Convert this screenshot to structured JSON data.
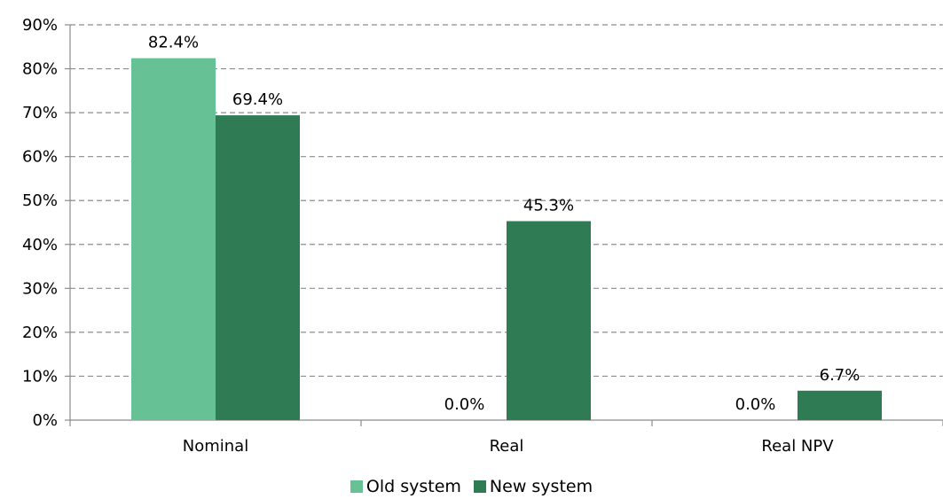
{
  "chart_data": {
    "type": "bar",
    "categories": [
      "Nominal",
      "Real",
      "Real NPV"
    ],
    "series": [
      {
        "name": "Old system",
        "values": [
          82.4,
          0.0,
          0.0
        ],
        "labels": [
          "82.4%",
          "0.0%",
          "0.0%"
        ],
        "color": "#66c294"
      },
      {
        "name": "New system",
        "values": [
          69.4,
          45.3,
          6.7
        ],
        "labels": [
          "69.4%",
          "45.3%",
          "6.7%"
        ],
        "color": "#2f7b53"
      }
    ],
    "ylim": [
      0,
      90
    ],
    "yticks": [
      0,
      10,
      20,
      30,
      40,
      50,
      60,
      70,
      80,
      90
    ],
    "ytick_labels": [
      "0%",
      "10%",
      "20%",
      "30%",
      "40%",
      "50%",
      "60%",
      "70%",
      "80%",
      "90%"
    ],
    "grid": true,
    "legend_position": "bottom"
  }
}
